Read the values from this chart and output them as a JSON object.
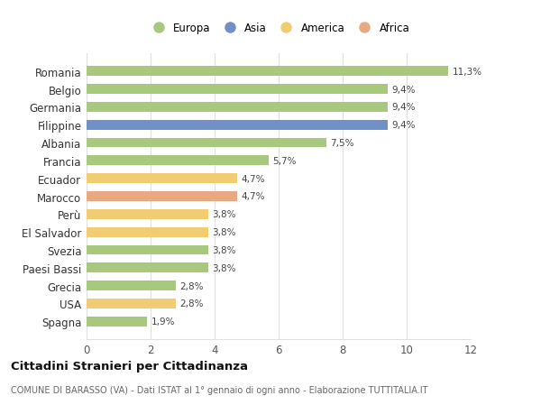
{
  "countries": [
    "Romania",
    "Belgio",
    "Germania",
    "Filippine",
    "Albania",
    "Francia",
    "Ecuador",
    "Marocco",
    "Perù",
    "El Salvador",
    "Svezia",
    "Paesi Bassi",
    "Grecia",
    "USA",
    "Spagna"
  ],
  "values": [
    11.3,
    9.4,
    9.4,
    9.4,
    7.5,
    5.7,
    4.7,
    4.7,
    3.8,
    3.8,
    3.8,
    3.8,
    2.8,
    2.8,
    1.9
  ],
  "labels": [
    "11,3%",
    "9,4%",
    "9,4%",
    "9,4%",
    "7,5%",
    "5,7%",
    "4,7%",
    "4,7%",
    "3,8%",
    "3,8%",
    "3,8%",
    "3,8%",
    "2,8%",
    "2,8%",
    "1,9%"
  ],
  "continents": [
    "Europa",
    "Europa",
    "Europa",
    "Asia",
    "Europa",
    "Europa",
    "America",
    "Africa",
    "America",
    "America",
    "Europa",
    "Europa",
    "Europa",
    "America",
    "Europa"
  ],
  "colors": {
    "Europa": "#a8c87e",
    "Asia": "#7090c8",
    "America": "#f2cc72",
    "Africa": "#e8a882"
  },
  "legend_order": [
    "Europa",
    "Asia",
    "America",
    "Africa"
  ],
  "xlim": [
    0,
    12
  ],
  "xticks": [
    0,
    2,
    4,
    6,
    8,
    10,
    12
  ],
  "title": "Cittadini Stranieri per Cittadinanza",
  "subtitle": "COMUNE DI BARASSO (VA) - Dati ISTAT al 1° gennaio di ogni anno - Elaborazione TUTTITALIA.IT",
  "bg_color": "#ffffff",
  "grid_color": "#e0e0e0",
  "bar_height": 0.55
}
